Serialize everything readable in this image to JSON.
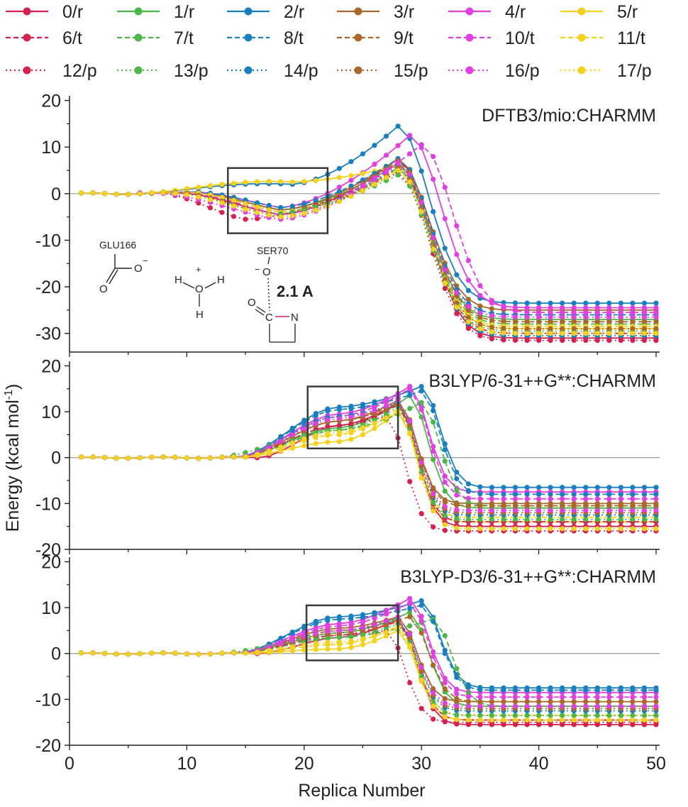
{
  "legend": [
    {
      "label": "0/r",
      "color": "#d6204f",
      "dash": "solid"
    },
    {
      "label": "1/r",
      "color": "#4cb748",
      "dash": "solid"
    },
    {
      "label": "2/r",
      "color": "#1a7fbe",
      "dash": "solid"
    },
    {
      "label": "3/r",
      "color": "#a8692b",
      "dash": "solid"
    },
    {
      "label": "4/r",
      "color": "#e040e0",
      "dash": "solid"
    },
    {
      "label": "5/r",
      "color": "#f2d21e",
      "dash": "solid"
    },
    {
      "label": "6/t",
      "color": "#d6204f",
      "dash": "dashed"
    },
    {
      "label": "7/t",
      "color": "#4cb748",
      "dash": "dashed"
    },
    {
      "label": "8/t",
      "color": "#1a7fbe",
      "dash": "dashed"
    },
    {
      "label": "9/t",
      "color": "#a8692b",
      "dash": "dashed"
    },
    {
      "label": "10/t",
      "color": "#e040e0",
      "dash": "dashed"
    },
    {
      "label": "11/t",
      "color": "#f2d21e",
      "dash": "dashed"
    },
    {
      "label": "12/p",
      "color": "#d6204f",
      "dash": "dotted"
    },
    {
      "label": "13/p",
      "color": "#4cb748",
      "dash": "dotted"
    },
    {
      "label": "14/p",
      "color": "#1a7fbe",
      "dash": "dotted"
    },
    {
      "label": "15/p",
      "color": "#a8692b",
      "dash": "dotted"
    },
    {
      "label": "16/p",
      "color": "#e040e0",
      "dash": "dotted"
    },
    {
      "label": "17/p",
      "color": "#f2d21e",
      "dash": "dotted"
    }
  ],
  "colors": {
    "red": "#d6204f",
    "green": "#4cb748",
    "blue": "#1a7fbe",
    "brown": "#a8692b",
    "magenta": "#e040e0",
    "yellow": "#f2d21e",
    "box": "#3a3a3a",
    "zero_line": "#9a9a9a"
  },
  "y_axis_label": "Energy (kcal mol",
  "y_axis_label_sup": "-1",
  "y_axis_label_end": ")",
  "x_axis_label": "Replica Number",
  "x_ticks": [
    "0",
    "10",
    "20",
    "30",
    "40",
    "50"
  ],
  "inset": {
    "glu_label": "GLU166",
    "ser_label": "SER70",
    "distance_label": "2.1 A",
    "atom_O": "O",
    "atom_H": "H",
    "atom_C": "C",
    "atom_N": "N",
    "charge_minus": "−",
    "charge_plus": "+"
  },
  "chart_data": [
    {
      "type": "line",
      "title": "DFTB3/mio:CHARMM",
      "xlim": [
        0,
        50
      ],
      "ylim": [
        -34,
        21
      ],
      "y_ticks": [
        20,
        10,
        0,
        -10,
        -20,
        -30
      ],
      "highlight_box": {
        "x": [
          13.5,
          22.0
        ],
        "y": [
          -8.5,
          5.5
        ]
      },
      "x": [
        1,
        50
      ],
      "series": [
        {
          "name": "0/r",
          "ts": 28,
          "ts_e": 7.5,
          "min_x": 18,
          "min_e": -4.5,
          "final": -31,
          "onset": 7
        },
        {
          "name": "1/r",
          "ts": 28,
          "ts_e": 6.5,
          "min_x": 18,
          "min_e": -3.5,
          "final": -27,
          "onset": 8
        },
        {
          "name": "2/r",
          "ts": 28,
          "ts_e": 14.5,
          "min_x": 19,
          "min_e": 2.0,
          "final": -23.5,
          "onset": 6
        },
        {
          "name": "3/r",
          "ts": 28,
          "ts_e": 7.5,
          "min_x": 18,
          "min_e": -3.5,
          "final": -25,
          "onset": 8
        },
        {
          "name": "4/r",
          "ts": 29,
          "ts_e": 12.5,
          "min_x": 18,
          "min_e": -3.0,
          "final": -24.5,
          "onset": 8
        },
        {
          "name": "5/r",
          "ts": 28,
          "ts_e": 6.0,
          "min_x": 19,
          "min_e": 2.5,
          "final": -29,
          "onset": 6
        },
        {
          "name": "6/t",
          "ts": 28,
          "ts_e": 6.5,
          "min_x": 18,
          "min_e": -4.5,
          "final": -30,
          "onset": 7
        },
        {
          "name": "7/t",
          "ts": 28,
          "ts_e": 5.5,
          "min_x": 18,
          "min_e": -4.0,
          "final": -28,
          "onset": 8
        },
        {
          "name": "8/t",
          "ts": 28,
          "ts_e": 7.5,
          "min_x": 18,
          "min_e": -3.0,
          "final": -26,
          "onset": 8
        },
        {
          "name": "9/t",
          "ts": 28,
          "ts_e": 7.0,
          "min_x": 18,
          "min_e": -4.0,
          "final": -27.5,
          "onset": 8
        },
        {
          "name": "10/t",
          "ts": 30,
          "ts_e": 10.5,
          "min_x": 18,
          "min_e": -4.5,
          "final": -25.5,
          "onset": 8
        },
        {
          "name": "11/t",
          "ts": 28,
          "ts_e": 5.0,
          "min_x": 18,
          "min_e": -4.0,
          "final": -28.5,
          "onset": 8
        },
        {
          "name": "12/p",
          "ts": 28,
          "ts_e": 4.5,
          "min_x": 15,
          "min_e": -5.5,
          "final": -31.5,
          "onset": 6
        },
        {
          "name": "13/p",
          "ts": 28,
          "ts_e": 4.0,
          "min_x": 17,
          "min_e": -4.5,
          "final": -29.5,
          "onset": 7
        },
        {
          "name": "14/p",
          "ts": 28,
          "ts_e": 6.0,
          "min_x": 18,
          "min_e": -5.0,
          "final": -30.5,
          "onset": 7
        },
        {
          "name": "15/p",
          "ts": 28,
          "ts_e": 5.5,
          "min_x": 18,
          "min_e": -5.0,
          "final": -29,
          "onset": 7
        },
        {
          "name": "16/p",
          "ts": 28,
          "ts_e": 6.5,
          "min_x": 18,
          "min_e": -5.5,
          "final": -26.5,
          "onset": 5
        },
        {
          "name": "17/p",
          "ts": 28,
          "ts_e": 5.0,
          "min_x": 18,
          "min_e": -5.0,
          "final": -30,
          "onset": 6
        }
      ]
    },
    {
      "type": "line",
      "title": "B3LYP/6-31++G**:CHARMM",
      "xlim": [
        0,
        50
      ],
      "ylim": [
        -20,
        21
      ],
      "y_ticks": [
        20,
        10,
        0,
        -10,
        -20
      ],
      "highlight_box": {
        "x": [
          20.3,
          28.0
        ],
        "y": [
          2.0,
          15.5
        ]
      },
      "x": [
        1,
        50
      ],
      "series": [
        {
          "name": "0/r",
          "ts": 28,
          "ts_e": 12.0,
          "min_x": 23,
          "min_e": 7.0,
          "final": -15,
          "onset": 16
        },
        {
          "name": "1/r",
          "ts": 29,
          "ts_e": 13.5,
          "min_x": 23,
          "min_e": 6.5,
          "final": -11,
          "onset": 14
        },
        {
          "name": "2/r",
          "ts": 30,
          "ts_e": 15.5,
          "min_x": 23,
          "min_e": 11.0,
          "final": -6.5,
          "onset": 14
        },
        {
          "name": "3/r",
          "ts": 28,
          "ts_e": 12.5,
          "min_x": 23,
          "min_e": 8.0,
          "final": -10,
          "onset": 14
        },
        {
          "name": "4/r",
          "ts": 29,
          "ts_e": 15.5,
          "min_x": 23,
          "min_e": 9.5,
          "final": -7.5,
          "onset": 14
        },
        {
          "name": "5/r",
          "ts": 28,
          "ts_e": 10.0,
          "min_x": 23,
          "min_e": 3.5,
          "final": -14,
          "onset": 14
        },
        {
          "name": "6/t",
          "ts": 28,
          "ts_e": 11.5,
          "min_x": 23,
          "min_e": 7.0,
          "final": -14,
          "onset": 14
        },
        {
          "name": "7/t",
          "ts": 30,
          "ts_e": 12.0,
          "min_x": 23,
          "min_e": 6.0,
          "final": -10.5,
          "onset": 14
        },
        {
          "name": "8/t",
          "ts": 30,
          "ts_e": 14.5,
          "min_x": 23,
          "min_e": 10.5,
          "final": -8,
          "onset": 14
        },
        {
          "name": "9/t",
          "ts": 28,
          "ts_e": 12.0,
          "min_x": 23,
          "min_e": 8.0,
          "final": -10.5,
          "onset": 14
        },
        {
          "name": "10/t",
          "ts": 29,
          "ts_e": 15.0,
          "min_x": 23,
          "min_e": 9.0,
          "final": -9,
          "onset": 14
        },
        {
          "name": "11/t",
          "ts": 28,
          "ts_e": 10.5,
          "min_x": 23,
          "min_e": 5.0,
          "final": -13,
          "onset": 14
        },
        {
          "name": "12/p",
          "ts": 27,
          "ts_e": 9.0,
          "min_x": 23,
          "min_e": 7.0,
          "final": -16,
          "onset": 14
        },
        {
          "name": "13/p",
          "ts": 28,
          "ts_e": 11.0,
          "min_x": 23,
          "min_e": 6.0,
          "final": -13.5,
          "onset": 12
        },
        {
          "name": "14/p",
          "ts": 28,
          "ts_e": 12.0,
          "min_x": 23,
          "min_e": 9.0,
          "final": -12.5,
          "onset": 14
        },
        {
          "name": "15/p",
          "ts": 28,
          "ts_e": 11.5,
          "min_x": 23,
          "min_e": 8.0,
          "final": -12,
          "onset": 14
        },
        {
          "name": "16/p",
          "ts": 28,
          "ts_e": 12.5,
          "min_x": 23,
          "min_e": 8.5,
          "final": -11.5,
          "onset": 14
        },
        {
          "name": "17/p",
          "ts": 28,
          "ts_e": 10.0,
          "min_x": 23,
          "min_e": 5.5,
          "final": -15.5,
          "onset": 14
        }
      ]
    },
    {
      "type": "line",
      "title": "B3LYP-D3/6-31++G**:CHARMM",
      "xlim": [
        0,
        50
      ],
      "ylim": [
        -20,
        21
      ],
      "y_ticks": [
        20,
        10,
        0,
        -10,
        -20
      ],
      "highlight_box": {
        "x": [
          20.2,
          28.0
        ],
        "y": [
          -1.5,
          10.5
        ]
      },
      "x": [
        1,
        50
      ],
      "series": [
        {
          "name": "0/r",
          "ts": 28,
          "ts_e": 7.5,
          "min_x": 23,
          "min_e": 3.5,
          "final": -15.5,
          "onset": 16
        },
        {
          "name": "1/r",
          "ts": 29,
          "ts_e": 9.0,
          "min_x": 23,
          "min_e": 4.5,
          "final": -11.5,
          "onset": 14
        },
        {
          "name": "2/r",
          "ts": 30,
          "ts_e": 11.5,
          "min_x": 23,
          "min_e": 8.0,
          "final": -7.5,
          "onset": 14
        },
        {
          "name": "3/r",
          "ts": 28,
          "ts_e": 8.0,
          "min_x": 23,
          "min_e": 5.5,
          "final": -10.5,
          "onset": 14
        },
        {
          "name": "4/r",
          "ts": 29,
          "ts_e": 12.0,
          "min_x": 23,
          "min_e": 6.5,
          "final": -8.5,
          "onset": 14
        },
        {
          "name": "5/r",
          "ts": 28,
          "ts_e": 5.0,
          "min_x": 23,
          "min_e": 1.0,
          "final": -14.5,
          "onset": 14
        },
        {
          "name": "6/t",
          "ts": 28,
          "ts_e": 7.0,
          "min_x": 23,
          "min_e": 4.0,
          "final": -14.5,
          "onset": 14
        },
        {
          "name": "7/t",
          "ts": 31,
          "ts_e": 7.5,
          "min_x": 23,
          "min_e": 3.5,
          "final": -11.5,
          "onset": 14
        },
        {
          "name": "8/t",
          "ts": 30,
          "ts_e": 10.5,
          "min_x": 23,
          "min_e": 7.5,
          "final": -8,
          "onset": 14
        },
        {
          "name": "9/t",
          "ts": 29,
          "ts_e": 8.0,
          "min_x": 23,
          "min_e": 5.0,
          "final": -10.5,
          "onset": 14
        },
        {
          "name": "10/t",
          "ts": 29,
          "ts_e": 11.0,
          "min_x": 23,
          "min_e": 6.0,
          "final": -9.5,
          "onset": 14
        },
        {
          "name": "11/t",
          "ts": 28,
          "ts_e": 6.0,
          "min_x": 23,
          "min_e": 2.0,
          "final": -13.5,
          "onset": 14
        },
        {
          "name": "12/p",
          "ts": 27,
          "ts_e": 5.0,
          "min_x": 23,
          "min_e": 4.0,
          "final": -15,
          "onset": 14
        },
        {
          "name": "13/p",
          "ts": 28,
          "ts_e": 6.5,
          "min_x": 23,
          "min_e": 3.5,
          "final": -13.5,
          "onset": 12
        },
        {
          "name": "14/p",
          "ts": 28,
          "ts_e": 7.5,
          "min_x": 23,
          "min_e": 5.0,
          "final": -12.5,
          "onset": 14
        },
        {
          "name": "15/p",
          "ts": 28,
          "ts_e": 7.0,
          "min_x": 23,
          "min_e": 4.5,
          "final": -12,
          "onset": 14
        },
        {
          "name": "16/p",
          "ts": 28,
          "ts_e": 8.0,
          "min_x": 23,
          "min_e": 5.0,
          "final": -11.5,
          "onset": 14
        },
        {
          "name": "17/p",
          "ts": 28,
          "ts_e": 5.5,
          "min_x": 23,
          "min_e": 2.5,
          "final": -14.5,
          "onset": 14
        }
      ]
    }
  ]
}
